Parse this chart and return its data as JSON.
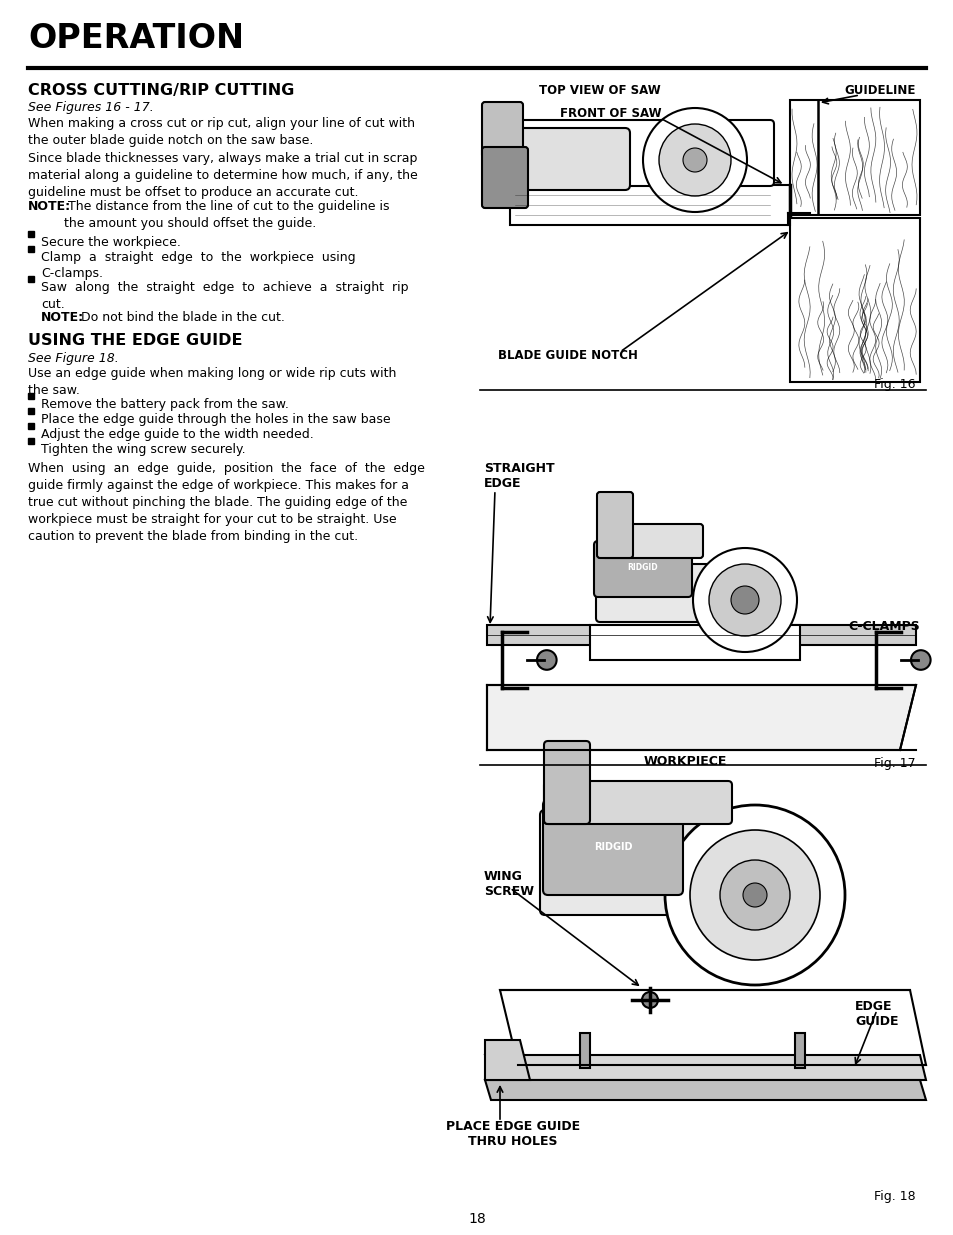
{
  "page_title": "OPERATION",
  "section1_title": "CROSS CUTTING/RIP CUTTING",
  "section1_subtitle": "See Figures 16 - 17.",
  "section1_para1": "When making a cross cut or rip cut, align your line of cut with\nthe outer blade guide notch on the saw base.",
  "section1_para2": "Since blade thicknesses vary, always make a trial cut in scrap\nmaterial along a guideline to determine how much, if any, the\nguideline must be offset to produce an accurate cut.",
  "section1_note1_bold": "NOTE:",
  "section1_note1_rest": " The distance from the line of cut to the guideline is\nthe amount you should offset the guide.",
  "section1_bullets": [
    "Secure the workpiece.",
    "Clamp  a  straight  edge  to  the  workpiece  using\nC-clamps.",
    "Saw  along  the  straight  edge  to  achieve  a  straight  rip\ncut."
  ],
  "section1_note2_bold": "NOTE:",
  "section1_note2_rest": " Do not bind the blade in the cut.",
  "section2_title": "USING THE EDGE GUIDE",
  "section2_subtitle": "See Figure 18.",
  "section2_para1": "Use an edge guide when making long or wide rip cuts with\nthe saw.",
  "section2_bullets": [
    "Remove the battery pack from the saw.",
    "Place the edge guide through the holes in the saw base",
    "Adjust the edge guide to the width needed.",
    "Tighten the wing screw securely."
  ],
  "section2_para2": "When  using  an  edge  guide,  position  the  face  of  the  edge\nguide firmly against the edge of workpiece. This makes for a\ntrue cut without pinching the blade. The guiding edge of the\nworkpiece must be straight for your cut to be straight. Use\ncaution to prevent the blade from binding in the cut.",
  "fig16_labels": {
    "top_view": "TOP VIEW OF SAW",
    "guideline": "GUIDELINE",
    "front_of_saw": "FRONT OF SAW",
    "blade_guide": "BLADE GUIDE NOTCH",
    "fig_num": "Fig. 16"
  },
  "fig17_labels": {
    "straight_edge": "STRAIGHT\nEDGE",
    "c_clamps": "C-CLAMPS",
    "workpiece": "WORKPIECE",
    "fig_num": "Fig. 17"
  },
  "fig18_labels": {
    "wing_screw": "WING\nSCREW",
    "edge_guide": "EDGE\nGUIDE",
    "place_edge": "PLACE EDGE GUIDE\nTHRU HOLES",
    "fig_num": "Fig. 18"
  },
  "page_number": "18",
  "bg_color": "#ffffff",
  "text_color": "#000000"
}
